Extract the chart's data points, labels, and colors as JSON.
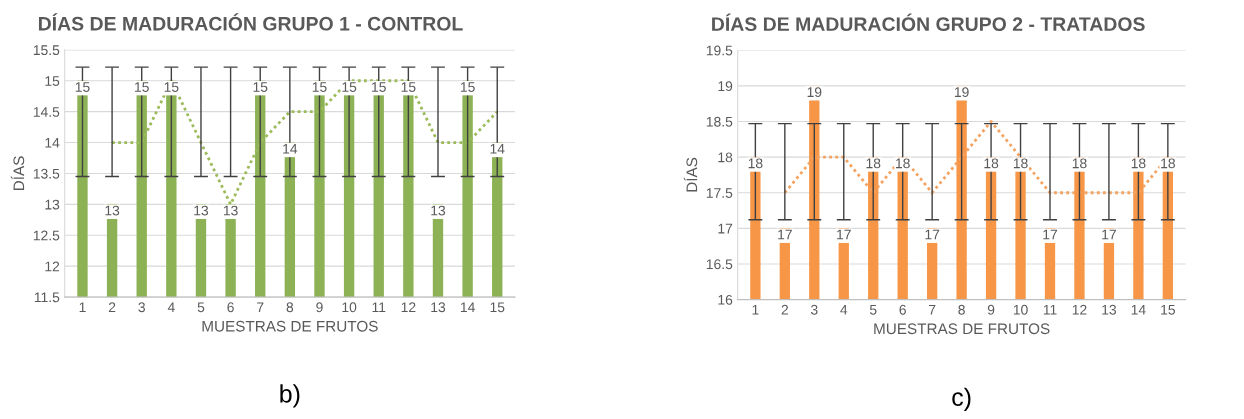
{
  "chart_data": [
    {
      "type": "bar",
      "title": "DÍAS DE MADURACIÓN GRUPO 1 - CONTROL",
      "xlabel": "MUESTRAS DE FRUTOS",
      "ylabel": "DÍAS",
      "categories": [
        "1",
        "2",
        "3",
        "4",
        "5",
        "6",
        "7",
        "8",
        "9",
        "10",
        "11",
        "12",
        "13",
        "14",
        "15"
      ],
      "series": [
        {
          "data_labels": true,
          "color": "#8db255",
          "values": [
            15,
            13,
            15,
            15,
            13,
            13,
            15,
            14,
            15,
            15,
            15,
            15,
            13,
            15,
            14
          ],
          "errors": [
            [
              13.45,
              15.22
            ],
            [
              13.45,
              15.22
            ],
            [
              13.45,
              15.22
            ],
            [
              13.45,
              15.22
            ],
            [
              13.45,
              15.22
            ],
            [
              13.45,
              15.22
            ],
            [
              13.45,
              15.22
            ],
            [
              13.45,
              15.22
            ],
            [
              13.45,
              15.22
            ],
            [
              13.45,
              15.22
            ],
            [
              13.45,
              15.22
            ],
            [
              13.45,
              15.22
            ],
            [
              13.45,
              15.22
            ],
            [
              13.45,
              15.22
            ],
            [
              13.45,
              15.22
            ]
          ]
        },
        {
          "type": "line",
          "color": "#9bbb59",
          "line_style": "dotted",
          "values": [
            null,
            14,
            14,
            15,
            14,
            13,
            14,
            14.5,
            14.5,
            15,
            15,
            15,
            14,
            14,
            14.5
          ]
        }
      ],
      "ylim": [
        11.5,
        15.5
      ],
      "yticks": [
        11.5,
        12,
        12.5,
        13,
        13.5,
        14,
        14.5,
        15,
        15.5
      ],
      "grid": "y",
      "annotations": [
        "b)"
      ]
    },
    {
      "type": "bar",
      "title": "DÍAS DE MADURACIÓN GRUPO 2 - TRATADOS",
      "xlabel": "MUESTRAS DE FRUTOS",
      "ylabel": "DÍAS",
      "categories": [
        "1",
        "2",
        "3",
        "4",
        "5",
        "6",
        "7",
        "8",
        "9",
        "10",
        "11",
        "12",
        "13",
        "14",
        "15"
      ],
      "series": [
        {
          "data_labels": true,
          "color": "#f79646",
          "values": [
            18,
            17,
            19,
            17,
            18,
            18,
            17,
            19,
            18,
            18,
            17,
            18,
            17,
            18,
            18
          ],
          "errors": [
            [
              17.12,
              18.47
            ],
            [
              17.12,
              18.47
            ],
            [
              17.12,
              18.47
            ],
            [
              17.12,
              18.47
            ],
            [
              17.12,
              18.47
            ],
            [
              17.12,
              18.47
            ],
            [
              17.12,
              18.47
            ],
            [
              17.12,
              18.47
            ],
            [
              17.12,
              18.47
            ],
            [
              17.12,
              18.47
            ],
            [
              17.12,
              18.47
            ],
            [
              17.12,
              18.47
            ],
            [
              17.12,
              18.47
            ],
            [
              17.12,
              18.47
            ],
            [
              17.12,
              18.47
            ]
          ]
        },
        {
          "type": "line",
          "color": "#f4a25e",
          "line_style": "dotted",
          "values": [
            null,
            17.5,
            18,
            18,
            17.5,
            18,
            17.5,
            18,
            18.5,
            18,
            17.5,
            17.5,
            17.5,
            17.5,
            18
          ]
        }
      ],
      "ylim": [
        16,
        19.5
      ],
      "yticks": [
        16,
        16.5,
        17,
        17.5,
        18,
        18.5,
        19,
        19.5
      ],
      "grid": "y",
      "annotations": [
        "c)"
      ]
    }
  ]
}
